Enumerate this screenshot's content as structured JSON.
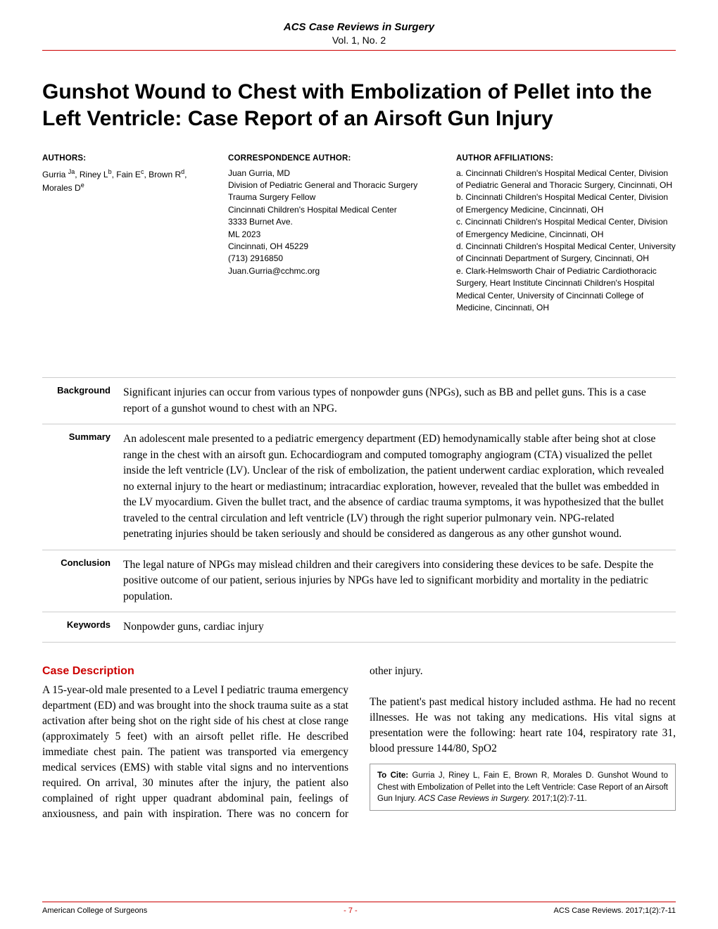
{
  "header": {
    "journal": "ACS Case Reviews in Surgery",
    "issue": "Vol. 1, No. 2"
  },
  "title": "Gunshot Wound to Chest with Embolization of Pellet into the Left Ventricle: Case Report of an Airsoft Gun Injury",
  "authors": {
    "heading": "AUTHORS:",
    "list_html": "Gurria <sup>Ja</sup>, Riney L<sup>b</sup>, Fain E<sup>c</sup>, Brown R<sup>d</sup>, Morales D<sup>e</sup>"
  },
  "corr": {
    "heading": "CORRESPONDENCE AUTHOR:",
    "lines": "Juan Gurria, MD\nDivision of Pediatric General and Thoracic Surgery\nTrauma Surgery Fellow\nCincinnati Children's Hospital Medical Center\n3333 Burnet Ave.\nML 2023\nCincinnati, OH 45229\n(713) 2916850\nJuan.Gurria@cchmc.org"
  },
  "affil": {
    "heading": "AUTHOR AFFILIATIONS:",
    "lines": "a. Cincinnati Children's Hospital Medical Center, Division of Pediatric General and Thoracic Surgery, Cincinnati, OH\nb. Cincinnati Children's Hospital Medical Center, Division of Emergency Medicine, Cincinnati, OH\nc. Cincinnati Children's Hospital Medical Center, Division of Emergency Medicine, Cincinnati, OH\nd. Cincinnati Children's Hospital Medical Center, University of Cincinnati Department of Surgery, Cincinnati, OH\ne. Clark-Helmsworth Chair of Pediatric Cardiothoracic Surgery, Heart Institute Cincinnati Children's Hospital Medical Center, University of Cincinnati College of Medicine, Cincinnati, OH"
  },
  "abstract": [
    {
      "label": "Background",
      "text": "Significant injuries can occur from various types of nonpowder guns (NPGs), such as BB and pellet guns. This is a case report of a gunshot wound to chest with an NPG."
    },
    {
      "label": "Summary",
      "text": "An adolescent male presented to a pediatric emergency department (ED) hemodynamically stable after being shot at close range in the chest with an airsoft gun. Echocardiogram and computed tomography angiogram (CTA) visualized the pellet inside the left ventricle (LV). Unclear of the risk of embolization, the patient underwent cardiac exploration, which revealed no external injury to the heart or mediastinum; intracardiac exploration, however, revealed that the bullet was embedded in the LV myocardium. Given the bullet tract, and the absence of cardiac trauma symptoms, it was hypothesized that the bullet traveled to the central circulation and left ventricle (LV) through the right superior pulmonary vein. NPG-related penetrating injuries should be taken seriously and should be considered as dangerous as any other gunshot wound."
    },
    {
      "label": "Conclusion",
      "text": "The legal nature of NPGs may mislead children and their caregivers into considering these devices to be safe. Despite the positive outcome of our patient, serious injuries by NPGs have led to significant morbidity and mortality in the pediatric population."
    },
    {
      "label": "Keywords",
      "text": "Nonpowder guns, cardiac injury"
    }
  ],
  "case": {
    "heading": "Case Description",
    "p1": "A 15-year-old male presented to a Level I pediatric trauma emergency department (ED) and was brought into the shock trauma suite as a stat activation after being shot on the right side of his chest at close range (approximately 5 feet) with an airsoft pellet rifle.  He described immediate chest pain. The patient was transported via emergency medical services (EMS) with stable vital signs and no interventions required. On arrival, 30 minutes after the injury, the patient also complained of right upper quadrant",
    "p2": "abdominal pain, feelings of anxiousness, and pain with inspiration. There was no concern for other injury.",
    "p3": "The patient's past medical history included asthma. He had no recent illnesses. He was not taking any medications. His vital signs at presentation were the following: heart rate 104, respiratory rate 31, blood pressure 144/80, SpO2"
  },
  "cite": {
    "label": "To Cite:",
    "text": " Gurria J, Riney L, Fain E, Brown R, Morales D. Gunshot Wound to Chest with Embolization of Pellet into the Left Ventricle: Case Report of an Airsoft Gun Injury. ",
    "journal": "ACS Case Reviews in Surgery.",
    "ref": " 2017;1(2):7-11."
  },
  "footer": {
    "left": "American College of Surgeons",
    "page": "- 7 -",
    "right": "ACS Case Reviews. 2017;1(2):7-11"
  },
  "colors": {
    "accent": "#c00000"
  }
}
